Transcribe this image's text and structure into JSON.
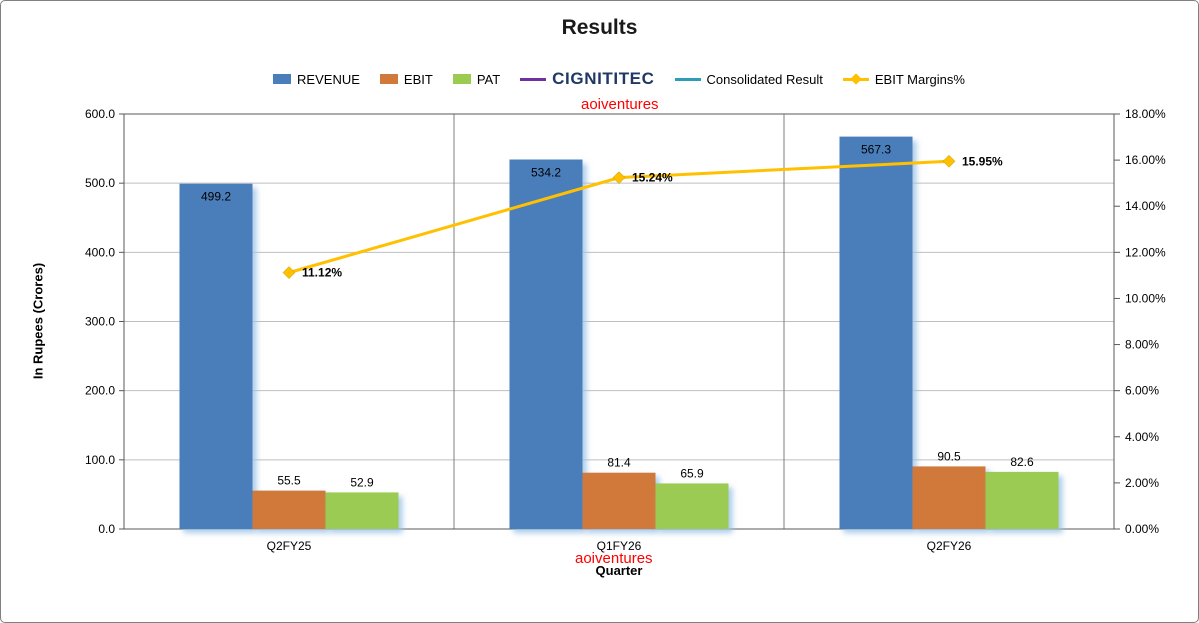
{
  "title": "Results",
  "watermark": {
    "text": "aoiventures",
    "color": "#FF0000"
  },
  "legend": [
    {
      "label": "REVENUE",
      "type": "square",
      "color": "#4A7EBB",
      "icon": "revenue-swatch"
    },
    {
      "label": "EBIT",
      "type": "square",
      "color": "#D0793B",
      "icon": "ebit-swatch"
    },
    {
      "label": "PAT",
      "type": "square",
      "color": "#9CCB52",
      "icon": "pat-swatch"
    },
    {
      "label": "CIGNITITEC",
      "type": "line",
      "color": "#7030A0",
      "label_style": "logo",
      "icon": "cignititec-line-swatch"
    },
    {
      "label": "Consolidated Result",
      "type": "line",
      "color": "#2E9DB9",
      "icon": "consolidated-result-line-swatch"
    },
    {
      "label": "EBIT Margins%",
      "type": "line-diamond",
      "color": "#FFC000",
      "icon": "ebit-margins-line-swatch"
    }
  ],
  "chart_data": {
    "type": "bar+line",
    "categories": [
      "Q2FY25",
      "Q1FY26",
      "Q2FY26"
    ],
    "series": [
      {
        "name": "REVENUE",
        "type": "bar",
        "color": "#4A7EBB",
        "values": [
          499.2,
          534.2,
          567.3
        ]
      },
      {
        "name": "EBIT",
        "type": "bar",
        "color": "#D0793B",
        "values": [
          55.5,
          81.4,
          90.5
        ]
      },
      {
        "name": "PAT",
        "type": "bar",
        "color": "#9CCB52",
        "values": [
          52.9,
          65.9,
          82.6
        ]
      },
      {
        "name": "EBIT Margins%",
        "type": "line",
        "color": "#FFC000",
        "axis": "right",
        "values": [
          11.12,
          15.24,
          15.95
        ],
        "labels": [
          "11.12%",
          "15.24%",
          "15.95%"
        ]
      }
    ],
    "left_axis": {
      "title": "In Rupees (Crores)",
      "min": 0,
      "max": 600,
      "step": 100,
      "tick_labels": [
        "0.0",
        "100.0",
        "200.0",
        "300.0",
        "400.0",
        "500.0",
        "600.0"
      ]
    },
    "right_axis": {
      "min": 0,
      "max": 18,
      "step": 2,
      "tick_labels": [
        "0.00%",
        "2.00%",
        "4.00%",
        "6.00%",
        "8.00%",
        "10.00%",
        "12.00%",
        "14.00%",
        "16.00%",
        "18.00%"
      ]
    },
    "x_axis": {
      "title": "Quarter"
    },
    "grid": true,
    "legend_position": "top"
  }
}
